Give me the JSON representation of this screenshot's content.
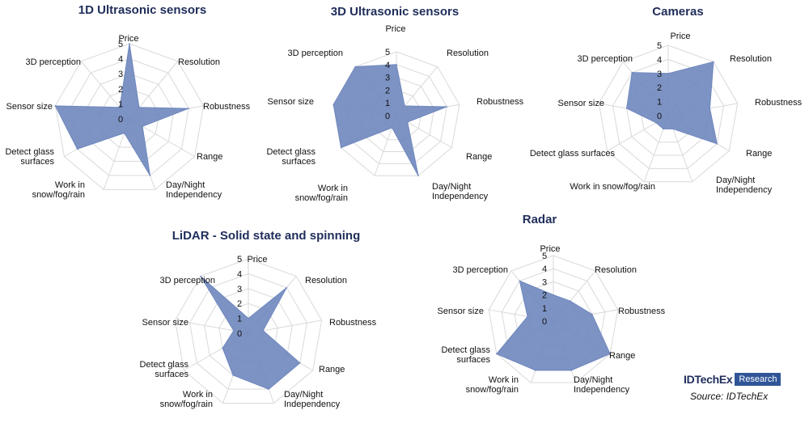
{
  "chart_data": [
    {
      "type": "radar",
      "title": "1D Ultrasonic sensors",
      "axes": [
        "Price",
        "Resolution",
        "Robustness",
        "Range",
        "Day/Night Independency",
        "Work in snow/fog/rain",
        "Detect glass surfaces",
        "Sensor size",
        "3D perception"
      ],
      "ticks": [
        0,
        1,
        2,
        3,
        4,
        5
      ],
      "range": [
        0,
        5
      ],
      "values": [
        5,
        1,
        4,
        1,
        4,
        1,
        4,
        5,
        1
      ]
    },
    {
      "type": "radar",
      "title": "3D Ultrasonic sensors",
      "axes": [
        "Price",
        "Resolution",
        "Robustness",
        "Range",
        "Day/Night Independency",
        "Work in snow/fog/rain",
        "Detect glass surfaces",
        "Sensor size",
        "3D perception"
      ],
      "ticks": [
        0,
        1,
        2,
        3,
        4,
        5
      ],
      "range": [
        0,
        5
      ],
      "values": [
        4,
        1,
        4,
        1,
        5,
        1,
        5,
        5,
        5
      ]
    },
    {
      "type": "radar",
      "title": "Cameras",
      "axes": [
        "Price",
        "Resolution",
        "Robustness",
        "Range",
        "Day/Night Independency",
        "Work in snow/fog/rain",
        "Detect glass surfaces",
        "Sensor size",
        "3D perception"
      ],
      "ticks": [
        0,
        1,
        2,
        3,
        4,
        5
      ],
      "range": [
        0,
        5
      ],
      "values": [
        3,
        5,
        3,
        4,
        1,
        1,
        1,
        3,
        4
      ]
    },
    {
      "type": "radar",
      "title": "LiDAR - Solid state and spinning",
      "axes": [
        "Price",
        "Resolution",
        "Robustness",
        "Range",
        "Day/Night Independency",
        "Work in snow/fog/rain",
        "Detect glass surfaces",
        "Sensor size",
        "3D perception"
      ],
      "ticks": [
        0,
        1,
        2,
        3,
        4,
        5
      ],
      "range": [
        0,
        5
      ],
      "values": [
        1,
        4,
        1,
        4,
        4,
        3,
        2,
        1,
        5
      ]
    },
    {
      "type": "radar",
      "title": "Radar",
      "axes": [
        "Price",
        "Resolution",
        "Robustness",
        "Range",
        "Day/Night Independency",
        "Work in snow/fog/rain",
        "Detect glass surfaces",
        "Sensor size",
        "3D perception"
      ],
      "ticks": [
        0,
        1,
        2,
        3,
        4,
        5
      ],
      "range": [
        0,
        5
      ],
      "values": [
        2,
        2,
        3,
        5,
        4,
        4,
        5,
        2,
        4
      ]
    }
  ],
  "series_color": "#6f87be",
  "grid_color": "#d9d9d9",
  "title_color": "#1f2d5a",
  "brand": {
    "name": "IDTechEx",
    "badge": "Research"
  },
  "source": "Source: IDTechEx"
}
